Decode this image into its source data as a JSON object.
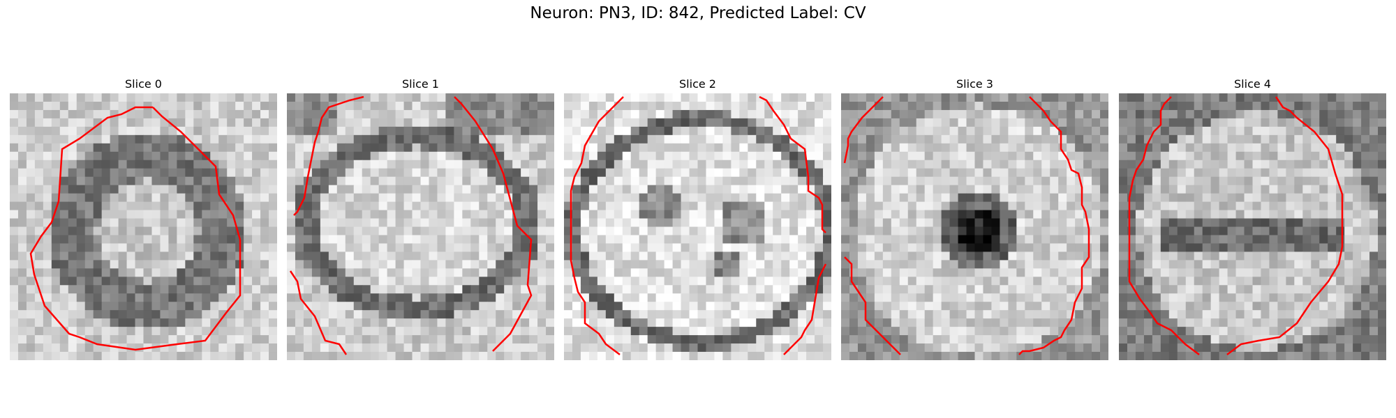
{
  "figure": {
    "title": "Neuron: PN3, ID: 842, Predicted Label: CV"
  },
  "panels": [
    {
      "title": "Slice 0",
      "pattern": "ring"
    },
    {
      "title": "Slice 1",
      "pattern": "oval-lower"
    },
    {
      "title": "Slice 2",
      "pattern": "bright-blobs"
    },
    {
      "title": "Slice 3",
      "pattern": "dark-center"
    },
    {
      "title": "Slice 4",
      "pattern": "band"
    }
  ],
  "colors": {
    "contour": "#ff0000"
  }
}
